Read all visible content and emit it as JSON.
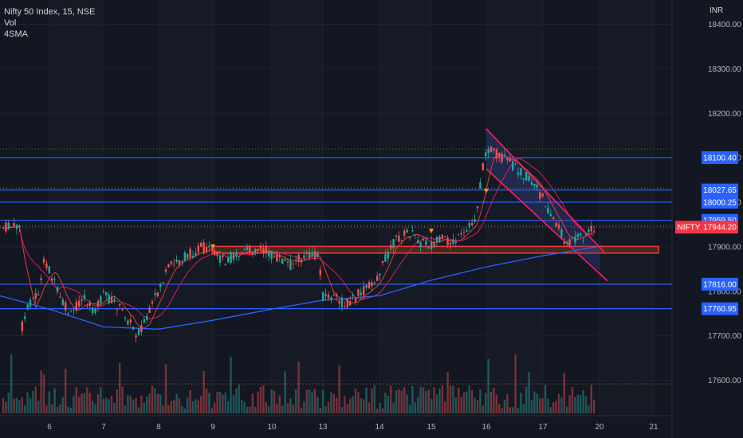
{
  "legend": {
    "symbol": "Nifty 50 Index, 15, NSE",
    "vol_label": "Vol",
    "sma_label": "4SMA"
  },
  "currency": "INR",
  "colors": {
    "background": "#131722",
    "up": "#26a69a",
    "down": "#ef5350",
    "level_line": "#2962ff",
    "zone": "#f23645",
    "zone_fill": "#ff9800",
    "channel": "#e91e63",
    "sma_blue": "#2962ff",
    "sma_pink": "#e91e63",
    "sma_red": "#f44336"
  },
  "chart_data": {
    "type": "candlestick",
    "title": "Nifty 50 Index, 15, NSE",
    "y_axis": {
      "unit": "INR",
      "ticks": [
        18400.0,
        18300.0,
        18200.0,
        18100.4,
        18027.65,
        18000.25,
        17959.5,
        17944.2,
        17900.0,
        17816.0,
        17760.95,
        17700.0,
        17600.0
      ],
      "gridlines": [
        18400,
        18300,
        18200,
        18100,
        18000,
        17900,
        17800,
        17700,
        17600
      ],
      "range": [
        17550,
        18440
      ]
    },
    "x_axis": {
      "ticks": [
        "6",
        "7",
        "8",
        "9",
        "10",
        "13",
        "14",
        "15",
        "16",
        "17",
        "20",
        "21"
      ]
    },
    "price_tags": [
      {
        "label": "18100.40",
        "value": 18100.4,
        "kind": "level"
      },
      {
        "label": "18027.65",
        "value": 18027.65,
        "kind": "level"
      },
      {
        "label": "18000.25",
        "value": 18000.25,
        "kind": "level"
      },
      {
        "label": "17959.50",
        "value": 17959.5,
        "kind": "level"
      },
      {
        "label": "17944.20",
        "value": 17944.2,
        "kind": "last",
        "symbol": "NIFTY"
      },
      {
        "label": "17816.00",
        "value": 17816.0,
        "kind": "level"
      },
      {
        "label": "17760.95",
        "value": 17760.95,
        "kind": "level"
      }
    ],
    "horizontal_levels": [
      18100.4,
      18027.65,
      18000.25,
      17959.5,
      17816.0,
      17760.95
    ],
    "dotted_levels": [
      18120,
      18032,
      17947,
      17592
    ],
    "support_zone": {
      "from": 17886,
      "to": 17901,
      "start": "9"
    },
    "channel": {
      "upper": [
        {
          "x": "16",
          "y": 18165
        },
        {
          "x": "20",
          "y": 17895
        }
      ],
      "lower": [
        {
          "x": "16",
          "y": 18075
        },
        {
          "x": "20",
          "y": 17845
        }
      ]
    },
    "price_path": [
      {
        "x": "5.4",
        "y": 17705
      },
      {
        "x": "5.6",
        "y": 17775
      },
      {
        "x": "5.8",
        "y": 17800
      },
      {
        "x": "5.9",
        "y": 17870
      },
      {
        "x": "6",
        "y": 17850
      },
      {
        "x": "6.2",
        "y": 17780
      },
      {
        "x": "6.4",
        "y": 17745
      },
      {
        "x": "6.6",
        "y": 17790
      },
      {
        "x": "6.8",
        "y": 17755
      },
      {
        "x": "7",
        "y": 17790
      },
      {
        "x": "7.2",
        "y": 17775
      },
      {
        "x": "7.4",
        "y": 17745
      },
      {
        "x": "7.6",
        "y": 17705
      },
      {
        "x": "7.8",
        "y": 17740
      },
      {
        "x": "8",
        "y": 17805
      },
      {
        "x": "8.2",
        "y": 17855
      },
      {
        "x": "8.4",
        "y": 17870
      },
      {
        "x": "8.6",
        "y": 17885
      },
      {
        "x": "8.8",
        "y": 17900
      },
      {
        "x": "9",
        "y": 17885
      },
      {
        "x": "9.2",
        "y": 17870
      },
      {
        "x": "9.4",
        "y": 17880
      },
      {
        "x": "9.6",
        "y": 17890
      },
      {
        "x": "9.8",
        "y": 17900
      },
      {
        "x": "10",
        "y": 17880
      },
      {
        "x": "10.2",
        "y": 17870
      },
      {
        "x": "10.4",
        "y": 17860
      },
      {
        "x": "10.6",
        "y": 17875
      },
      {
        "x": "10.8",
        "y": 17880
      },
      {
        "x": "11",
        "y": 17880
      },
      {
        "x": "13",
        "y": 17790
      },
      {
        "x": "13.2",
        "y": 17785
      },
      {
        "x": "13.4",
        "y": 17770
      },
      {
        "x": "13.6",
        "y": 17790
      },
      {
        "x": "13.8",
        "y": 17810
      },
      {
        "x": "14",
        "y": 17840
      },
      {
        "x": "14.2",
        "y": 17895
      },
      {
        "x": "14.4",
        "y": 17925
      },
      {
        "x": "14.6",
        "y": 17930
      },
      {
        "x": "14.8",
        "y": 17910
      },
      {
        "x": "15",
        "y": 17905
      },
      {
        "x": "15.2",
        "y": 17915
      },
      {
        "x": "15.4",
        "y": 17910
      },
      {
        "x": "15.6",
        "y": 17925
      },
      {
        "x": "15.8",
        "y": 17965
      },
      {
        "x": "16",
        "y": 18125
      },
      {
        "x": "16.2",
        "y": 18105
      },
      {
        "x": "16.4",
        "y": 18090
      },
      {
        "x": "16.6",
        "y": 18070
      },
      {
        "x": "16.8",
        "y": 18045
      },
      {
        "x": "17",
        "y": 18010
      },
      {
        "x": "17.2",
        "y": 17980
      },
      {
        "x": "17.4",
        "y": 17955
      },
      {
        "x": "17.6",
        "y": 17930
      },
      {
        "x": "17.8",
        "y": 17905
      },
      {
        "x": "18",
        "y": 17915
      },
      {
        "x": "19.6",
        "y": 17944
      }
    ],
    "sma_200": [
      {
        "x": "5",
        "y": 17790
      },
      {
        "x": "6",
        "y": 17760
      },
      {
        "x": "7",
        "y": 17720
      },
      {
        "x": "8",
        "y": 17715
      },
      {
        "x": "9",
        "y": 17735
      },
      {
        "x": "10",
        "y": 17760
      },
      {
        "x": "13",
        "y": 17780
      },
      {
        "x": "14",
        "y": 17790
      },
      {
        "x": "15",
        "y": 17825
      },
      {
        "x": "16",
        "y": 17855
      },
      {
        "x": "17",
        "y": 17880
      },
      {
        "x": "19.6",
        "y": 17900
      }
    ],
    "markers": [
      {
        "x": "9",
        "y": 17895,
        "kind": "triangle-down"
      },
      {
        "x": "15",
        "y": 17930,
        "kind": "triangle-down"
      },
      {
        "x": "16",
        "y": 18020,
        "kind": "triangle-down"
      }
    ]
  }
}
